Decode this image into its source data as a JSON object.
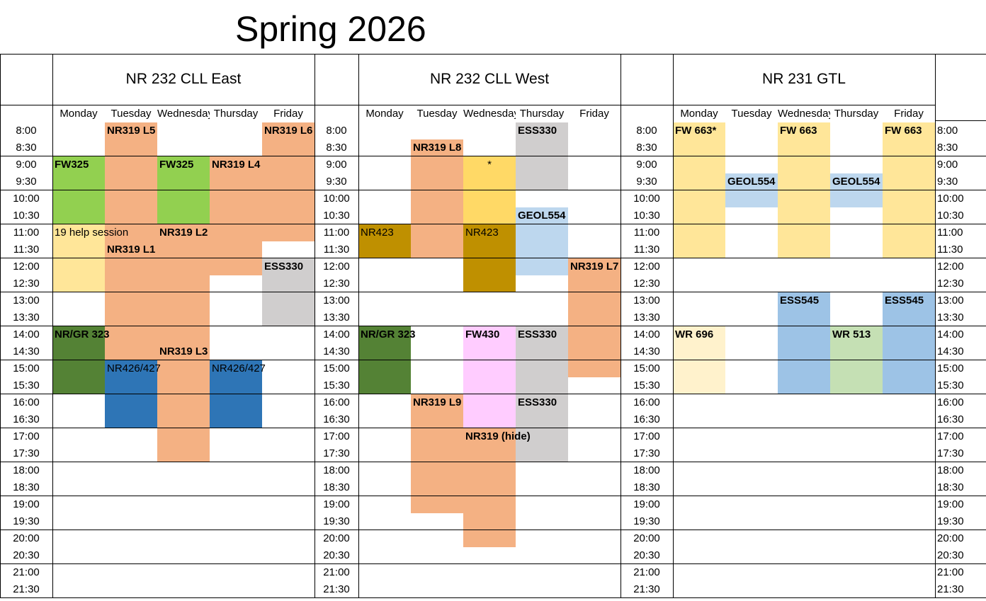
{
  "title": "Spring 2026",
  "times": [
    "8:00",
    "8:30",
    "9:00",
    "9:30",
    "10:00",
    "10:30",
    "11:00",
    "11:30",
    "12:00",
    "12:30",
    "13:00",
    "13:30",
    "14:00",
    "14:30",
    "15:00",
    "15:30",
    "16:00",
    "16:30",
    "17:00",
    "17:30",
    "18:00",
    "18:30",
    "19:00",
    "19:30",
    "20:00",
    "20:30",
    "21:00",
    "21:30"
  ],
  "days": [
    "Monday",
    "Tuesday",
    "Wednesday",
    "Thursday",
    "Friday"
  ],
  "colors": {
    "salmon": "#f4b183",
    "light_green": "#92d050",
    "dark_green": "#548235",
    "blue": "#2e75b6",
    "grey": "#d0cece",
    "yellow": "#ffd966",
    "light_yellow": "#ffe699",
    "cream": "#fff2cc",
    "mustard": "#bf9000",
    "light_blue": "#bdd7ee",
    "mid_blue": "#9dc3e6",
    "pale_green": "#c5e0b4",
    "pink": "#ffccff"
  },
  "rooms": [
    {
      "name": "NR 232 CLL East",
      "blocks": [
        {
          "day": 0,
          "start": 2,
          "end": 6,
          "color": "light_green"
        },
        {
          "day": 0,
          "start": 6,
          "end": 10,
          "color": "light_yellow"
        },
        {
          "day": 0,
          "start": 12,
          "end": 16,
          "color": "dark_green"
        },
        {
          "day": 1,
          "start": 0,
          "end": 14,
          "color": "salmon"
        },
        {
          "day": 1,
          "start": 14,
          "end": 18,
          "color": "blue"
        },
        {
          "day": 2,
          "start": 2,
          "end": 6,
          "color": "light_green"
        },
        {
          "day": 2,
          "start": 6,
          "end": 20,
          "color": "salmon"
        },
        {
          "day": 3,
          "start": 2,
          "end": 9,
          "color": "salmon"
        },
        {
          "day": 3,
          "start": 14,
          "end": 18,
          "color": "blue"
        },
        {
          "day": 4,
          "start": 0,
          "end": 7,
          "color": "salmon"
        },
        {
          "day": 4,
          "start": 8,
          "end": 12,
          "color": "grey"
        }
      ],
      "labels": [
        {
          "text": "NR319 L5",
          "day": 1,
          "slot": 0,
          "bold": true
        },
        {
          "text": "NR319 L6",
          "day": 4,
          "slot": 0,
          "bold": true
        },
        {
          "text": "FW325",
          "day": 0,
          "slot": 2,
          "bold": true
        },
        {
          "text": "FW325",
          "day": 2,
          "slot": 2,
          "bold": true
        },
        {
          "text": "NR319 L4",
          "day": 3,
          "slot": 2,
          "bold": true
        },
        {
          "text": "19 help session",
          "day": 0,
          "slot": 6,
          "bold": false
        },
        {
          "text": "NR319 L2",
          "day": 2,
          "slot": 6,
          "bold": true
        },
        {
          "text": "NR319 L1",
          "day": 1,
          "slot": 7,
          "bold": true
        },
        {
          "text": "ESS330",
          "day": 4,
          "slot": 8,
          "bold": true
        },
        {
          "text": "NR/GR 323",
          "day": 0,
          "slot": 12,
          "bold": true
        },
        {
          "text": "NR319 L3",
          "day": 2,
          "slot": 13,
          "bold": true
        },
        {
          "text": "NR426/427",
          "day": 1,
          "slot": 14,
          "bold": false
        },
        {
          "text": "NR426/427",
          "day": 3,
          "slot": 14,
          "bold": false
        }
      ]
    },
    {
      "name": "NR 232 CLL West",
      "blocks": [
        {
          "day": 0,
          "start": 6,
          "end": 8,
          "color": "mustard"
        },
        {
          "day": 0,
          "start": 12,
          "end": 16,
          "color": "dark_green"
        },
        {
          "day": 1,
          "start": 1,
          "end": 8,
          "color": "salmon"
        },
        {
          "day": 1,
          "start": 16,
          "end": 23,
          "color": "salmon"
        },
        {
          "day": 2,
          "start": 2,
          "end": 6,
          "color": "yellow"
        },
        {
          "day": 2,
          "start": 6,
          "end": 10,
          "color": "mustard"
        },
        {
          "day": 2,
          "start": 12,
          "end": 18,
          "color": "pink"
        },
        {
          "day": 2,
          "start": 18,
          "end": 25,
          "color": "salmon"
        },
        {
          "day": 3,
          "start": 0,
          "end": 4,
          "color": "grey"
        },
        {
          "day": 3,
          "start": 5,
          "end": 9,
          "color": "light_blue"
        },
        {
          "day": 3,
          "start": 12,
          "end": 20,
          "color": "grey"
        },
        {
          "day": 4,
          "start": 8,
          "end": 15,
          "color": "salmon"
        }
      ],
      "labels": [
        {
          "text": "ESS330",
          "day": 3,
          "slot": 0,
          "bold": true
        },
        {
          "text": "NR319 L8",
          "day": 1,
          "slot": 1,
          "bold": true
        },
        {
          "text": "*",
          "day": 2,
          "slot": 2,
          "bold": false,
          "center": true
        },
        {
          "text": "GEOL554",
          "day": 3,
          "slot": 5,
          "bold": true
        },
        {
          "text": "NR423",
          "day": 0,
          "slot": 6,
          "bold": false
        },
        {
          "text": "NR423",
          "day": 2,
          "slot": 6,
          "bold": false
        },
        {
          "text": "NR319 L7",
          "day": 4,
          "slot": 8,
          "bold": true
        },
        {
          "text": "NR/GR 323",
          "day": 0,
          "slot": 12,
          "bold": true
        },
        {
          "text": "FW430",
          "day": 2,
          "slot": 12,
          "bold": true
        },
        {
          "text": "ESS330",
          "day": 3,
          "slot": 12,
          "bold": true
        },
        {
          "text": "NR319 L9",
          "day": 1,
          "slot": 16,
          "bold": true
        },
        {
          "text": "ESS330",
          "day": 3,
          "slot": 16,
          "bold": true
        },
        {
          "text": "NR319 (hide)",
          "day": 2,
          "slot": 18,
          "bold": true
        }
      ]
    },
    {
      "name": "NR 231 GTL",
      "blocks": [
        {
          "day": 0,
          "start": 0,
          "end": 8,
          "color": "light_yellow"
        },
        {
          "day": 0,
          "start": 12,
          "end": 16,
          "color": "cream"
        },
        {
          "day": 1,
          "start": 3,
          "end": 5,
          "color": "light_blue"
        },
        {
          "day": 2,
          "start": 0,
          "end": 8,
          "color": "light_yellow"
        },
        {
          "day": 2,
          "start": 10,
          "end": 16,
          "color": "mid_blue"
        },
        {
          "day": 3,
          "start": 3,
          "end": 5,
          "color": "light_blue"
        },
        {
          "day": 3,
          "start": 12,
          "end": 16,
          "color": "pale_green"
        },
        {
          "day": 4,
          "start": 0,
          "end": 8,
          "color": "light_yellow"
        },
        {
          "day": 4,
          "start": 10,
          "end": 16,
          "color": "mid_blue"
        }
      ],
      "labels": [
        {
          "text": "FW 663*",
          "day": 0,
          "slot": 0,
          "bold": true
        },
        {
          "text": "FW 663",
          "day": 2,
          "slot": 0,
          "bold": true
        },
        {
          "text": "FW 663",
          "day": 4,
          "slot": 0,
          "bold": true
        },
        {
          "text": "GEOL554",
          "day": 1,
          "slot": 3,
          "bold": true
        },
        {
          "text": "GEOL554",
          "day": 3,
          "slot": 3,
          "bold": true
        },
        {
          "text": "ESS545",
          "day": 2,
          "slot": 10,
          "bold": true
        },
        {
          "text": "ESS545",
          "day": 4,
          "slot": 10,
          "bold": true
        },
        {
          "text": "WR 696",
          "day": 0,
          "slot": 12,
          "bold": true
        },
        {
          "text": "WR 513",
          "day": 3,
          "slot": 12,
          "bold": true
        }
      ]
    }
  ]
}
